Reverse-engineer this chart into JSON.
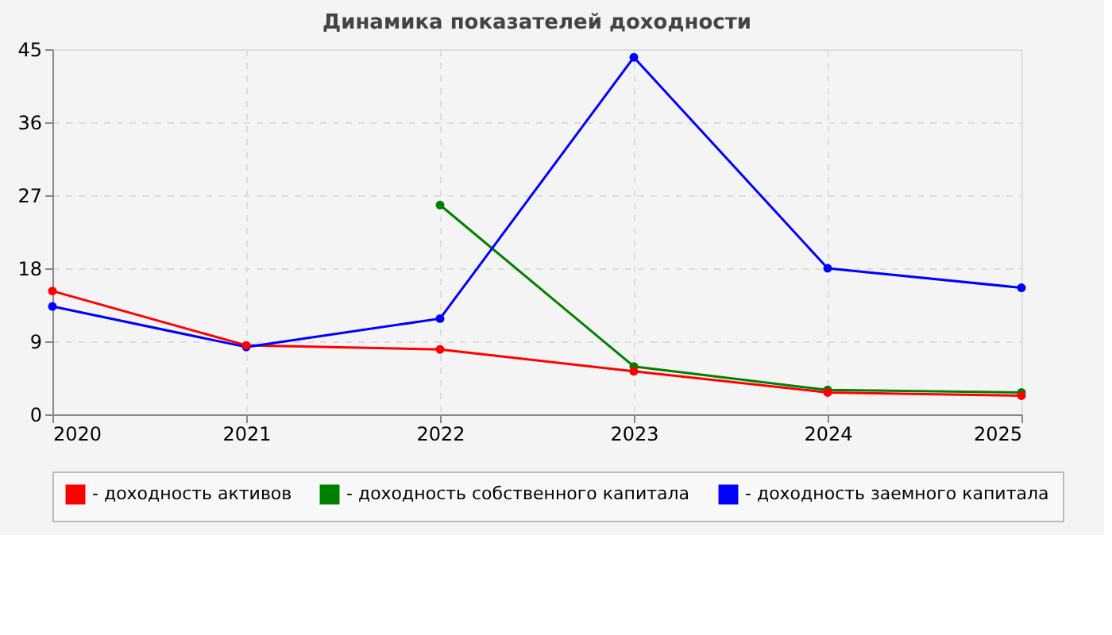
{
  "chart_data": {
    "type": "line",
    "title": "Динамика показателей доходности",
    "x": [
      2020,
      2021,
      2022,
      2023,
      2024,
      2025
    ],
    "xlim": [
      2020,
      2025
    ],
    "xticks": [
      2020,
      2021,
      2022,
      2023,
      2024,
      2025
    ],
    "ylim": [
      0,
      45
    ],
    "yticks": [
      0,
      9,
      18,
      27,
      36,
      45
    ],
    "series": [
      {
        "name": "- доходность активов",
        "color": "#ff0000",
        "values": [
          15.2,
          8.5,
          8.0,
          5.3,
          2.7,
          2.3
        ]
      },
      {
        "name": "- доходность собственного капитала",
        "color": "#008000",
        "values": [
          null,
          null,
          25.8,
          5.9,
          3.0,
          2.7
        ]
      },
      {
        "name": "- доходность заемного капитала",
        "color": "#0000ff",
        "values": [
          13.3,
          8.3,
          11.8,
          44.0,
          18.0,
          15.6
        ]
      }
    ],
    "grid": true,
    "legend": "bottom",
    "marker": "circle",
    "line_style": "solid"
  }
}
